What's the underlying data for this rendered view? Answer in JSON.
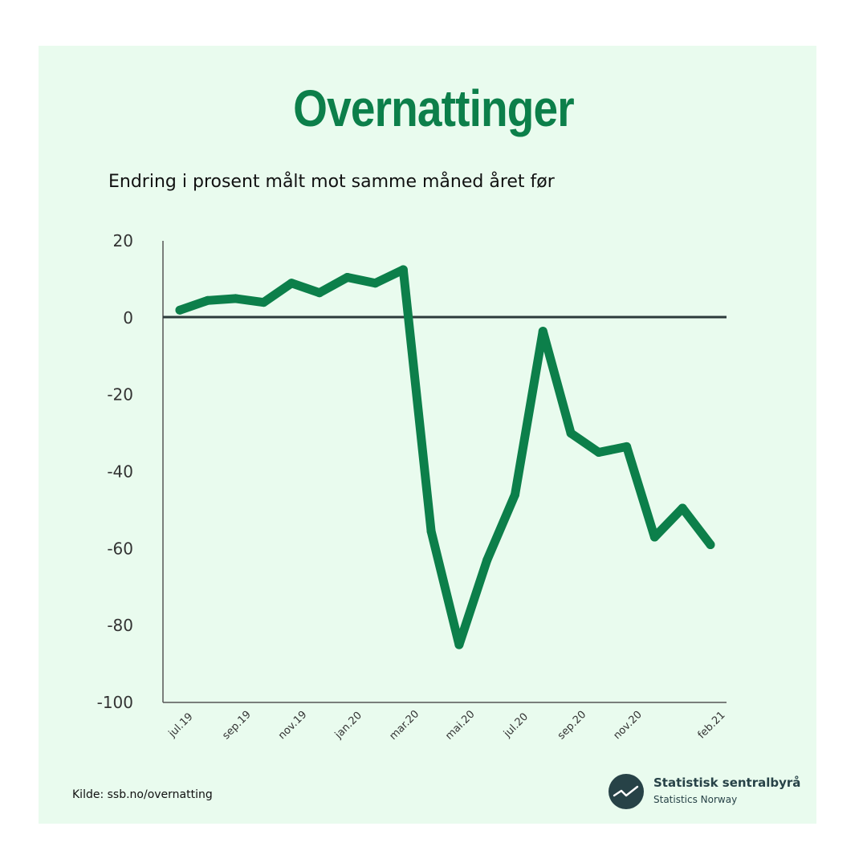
{
  "title": "Overnattinger",
  "subtitle": "Endring i prosent målt mot samme måned året før",
  "source": "Kilde: ssb.no/overnatting",
  "logo": {
    "name": "Statistisk sentralbyrå",
    "sub": "Statistics Norway",
    "icon": "ssb-logo-icon"
  },
  "colors": {
    "background": "#e9fbee",
    "line": "#0c7f4a",
    "title": "#0c7f4a",
    "axis": "#2b3a3a"
  },
  "chart_data": {
    "type": "line",
    "title": "Overnattinger",
    "ylabel": "Endring i prosent målt mot samme måned året før",
    "ylim": [
      -100,
      20
    ],
    "yticks": [
      20,
      0,
      -20,
      -40,
      -60,
      -80,
      -100
    ],
    "yticks_labels": [
      "20",
      "0",
      "-20",
      "-40",
      "-60",
      "-80",
      "-100"
    ],
    "x": [
      "jul.19",
      "aug.19",
      "sep.19",
      "okt.19",
      "nov.19",
      "des.19",
      "jan.20",
      "feb.20",
      "mar.20",
      "apr.20",
      "mai.20",
      "jun.20",
      "jul.20",
      "aug.20",
      "sep.20",
      "okt.20",
      "nov.20",
      "des.20",
      "jan.21",
      "feb.21"
    ],
    "xtick_labels": [
      "jul.19",
      "",
      "sep.19",
      "",
      "nov.19",
      "",
      "jan.20",
      "",
      "mar.20",
      "",
      "mai.20",
      "",
      "jul.20",
      "",
      "sep.20",
      "",
      "nov.20",
      "",
      "",
      "feb.21"
    ],
    "series": [
      {
        "name": "Overnattinger",
        "values": [
          2,
          4.5,
          5,
          4,
          9,
          6.5,
          10.5,
          9,
          12.5,
          -55.5,
          -85,
          -63,
          -46,
          -3.5,
          -30,
          -35,
          -33.5,
          -57,
          -49.5,
          -59
        ]
      }
    ]
  }
}
